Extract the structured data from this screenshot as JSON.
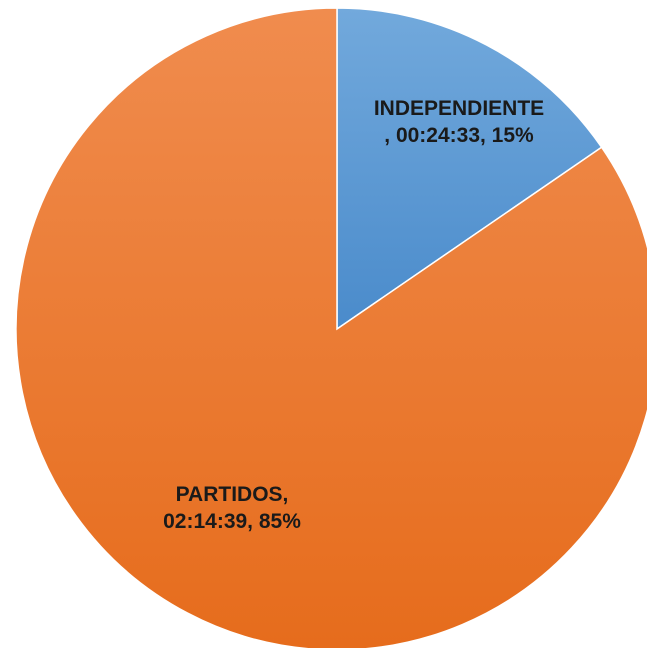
{
  "chart_data": {
    "type": "pie",
    "categories": [
      "INDEPENDIENTE",
      "PARTIDOS"
    ],
    "values": [
      1473,
      8079
    ],
    "value_labels": [
      "00:24:33",
      "02:14:39"
    ],
    "percentages": [
      "15%",
      "85%"
    ],
    "data_labels": [
      {
        "line1": "INDEPENDIENTE",
        "line2": ", 00:24:33, 15%"
      },
      {
        "line1": "PARTIDOS,",
        "line2": "02:14:39, 85%"
      }
    ],
    "colors": [
      "#5b9bd5",
      "#ed7d31"
    ],
    "colors_light": [
      "#72a9dc",
      "#f08c4e"
    ],
    "colors_dark": [
      "#4a8bcb",
      "#e66c1c"
    ],
    "title": "",
    "legend": "none",
    "start_angle": "12 o'clock",
    "direction": "clockwise"
  }
}
